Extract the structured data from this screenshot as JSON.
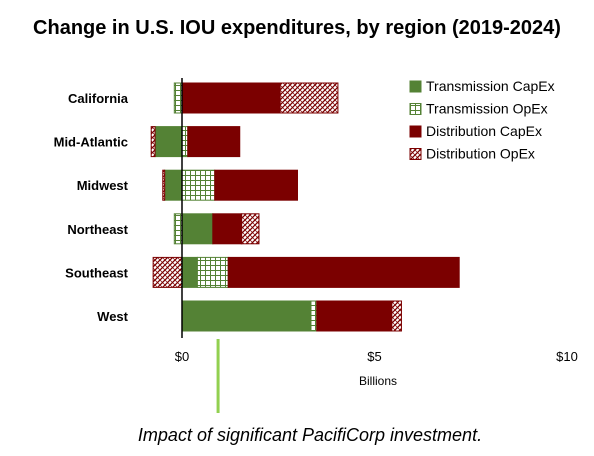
{
  "chart_data": {
    "type": "bar",
    "orientation": "horizontal",
    "stacked": true,
    "title": "Change in U.S. IOU expenditures, by region (2019-2024)",
    "xlabel": "Billions",
    "xlim": [
      -0.8,
      10
    ],
    "xticks": [
      {
        "value": 0,
        "label": "$0"
      },
      {
        "value": 5,
        "label": "$5"
      },
      {
        "value": 10,
        "label": "$10"
      }
    ],
    "grid": false,
    "legend_position": "top-right",
    "categories": [
      "California",
      "Mid-Atlantic",
      "Midwest",
      "Northeast",
      "Southeast",
      "West"
    ],
    "series": [
      {
        "name": "Transmission CapEx",
        "color": "#548235",
        "pattern": "solid",
        "values": [
          0.0,
          -0.7,
          -0.45,
          0.8,
          0.4,
          3.35
        ]
      },
      {
        "name": "Transmission OpEx",
        "color": "#548235",
        "pattern": "grid",
        "values": [
          -0.2,
          0.15,
          0.85,
          -0.2,
          0.8,
          0.15
        ]
      },
      {
        "name": "Distribution CapEx",
        "color": "#7b0000",
        "pattern": "solid",
        "values": [
          2.55,
          1.35,
          2.15,
          0.75,
          6.0,
          1.95
        ]
      },
      {
        "name": "Distribution OpEx",
        "color": "#7b0000",
        "pattern": "hatch",
        "values": [
          1.5,
          -0.1,
          -0.05,
          0.45,
          -0.75,
          0.25
        ]
      }
    ],
    "annotation": {
      "text": "Impact of significant PacifiCorp investment.",
      "marker_value": 0.95,
      "marker_color": "#92d050"
    }
  }
}
